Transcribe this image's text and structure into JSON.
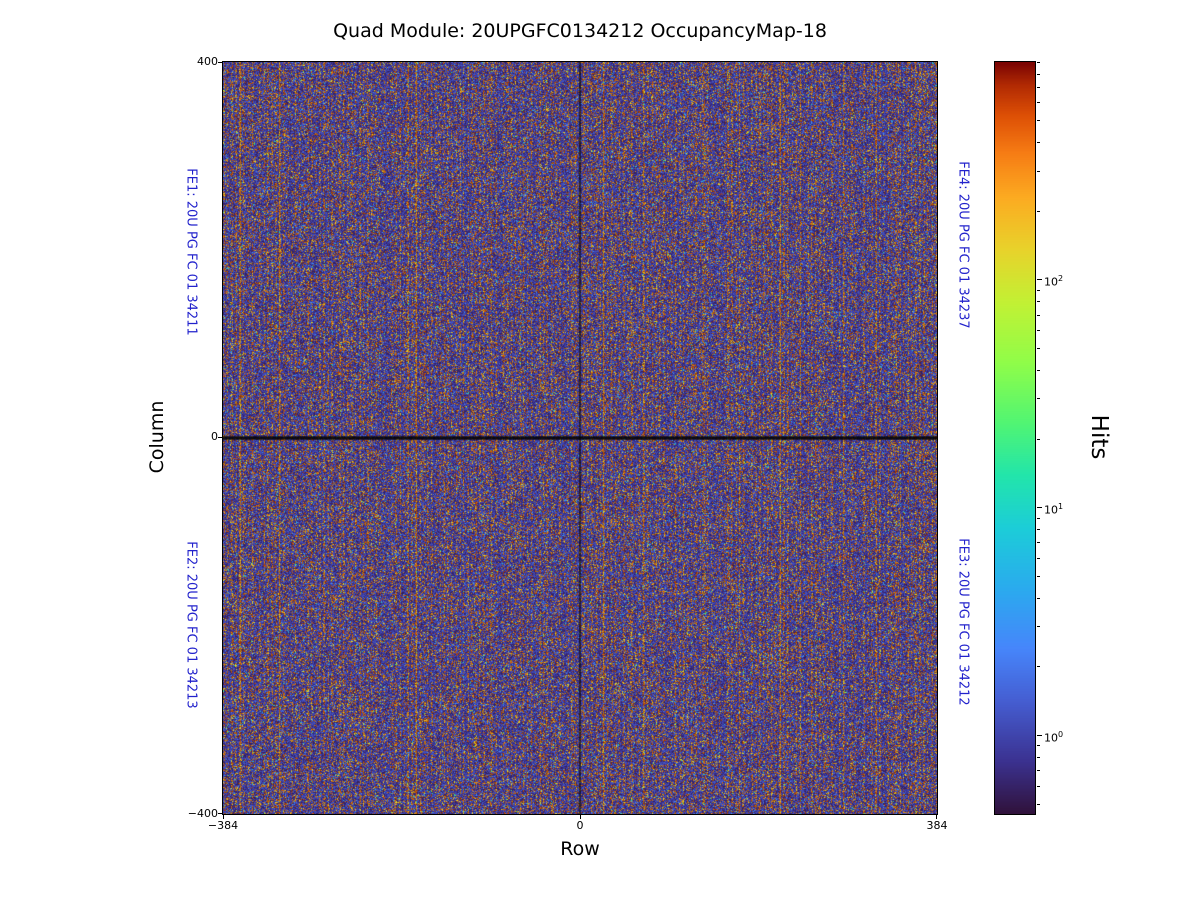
{
  "figure": {
    "background": "#ffffff"
  },
  "chart_data": {
    "type": "heatmap",
    "title": "Quad Module: 20UPGFC0134212 OccupancyMap-18",
    "xlabel": "Row",
    "ylabel": "Column",
    "xlim": [
      -384,
      384
    ],
    "ylim": [
      -400,
      400
    ],
    "grid": false,
    "colormap": "turbo",
    "x_ticks": [
      {
        "label": "−384",
        "value": -384
      },
      {
        "label": "0",
        "value": 0
      },
      {
        "label": "384",
        "value": 384
      }
    ],
    "y_ticks": [
      {
        "label": "400",
        "value": 400
      },
      {
        "label": "0",
        "value": 0
      },
      {
        "label": "−400",
        "value": -400
      }
    ],
    "colorbar": {
      "label": "Hits",
      "scale": "log",
      "range_min": 0.45,
      "range_max": 900,
      "ticks": [
        {
          "base": "10",
          "exp": "2",
          "value": 100
        },
        {
          "base": "10",
          "exp": "1",
          "value": 10
        },
        {
          "base": "10",
          "exp": "0",
          "value": 1
        }
      ]
    },
    "fe_labels": [
      {
        "id": "FE1",
        "label": "FE1: 20U PG FC 01 34211",
        "side": "left",
        "half": "top"
      },
      {
        "id": "FE2",
        "label": "FE2: 20U PG FC 01 34213",
        "side": "left",
        "half": "bottom"
      },
      {
        "id": "FE3",
        "label": "FE3: 20U PG FC 01 34212",
        "side": "right",
        "half": "bottom"
      },
      {
        "id": "FE4",
        "label": "FE4: 20U PG FC 01 34237",
        "side": "right",
        "half": "top"
      }
    ],
    "appearance": {
      "description": "Dense random pixel-occupancy noise: dark indigo background with fine vertical stripes of orange-brown speckles, occasional bright yellow and blue pixels, and dark seam lines between front-end chips at Row 0 and Column 0.",
      "fe_label_color": "#2222cc",
      "background_low_color": "#30123b",
      "speckle_high_color": "#fcab21"
    }
  }
}
